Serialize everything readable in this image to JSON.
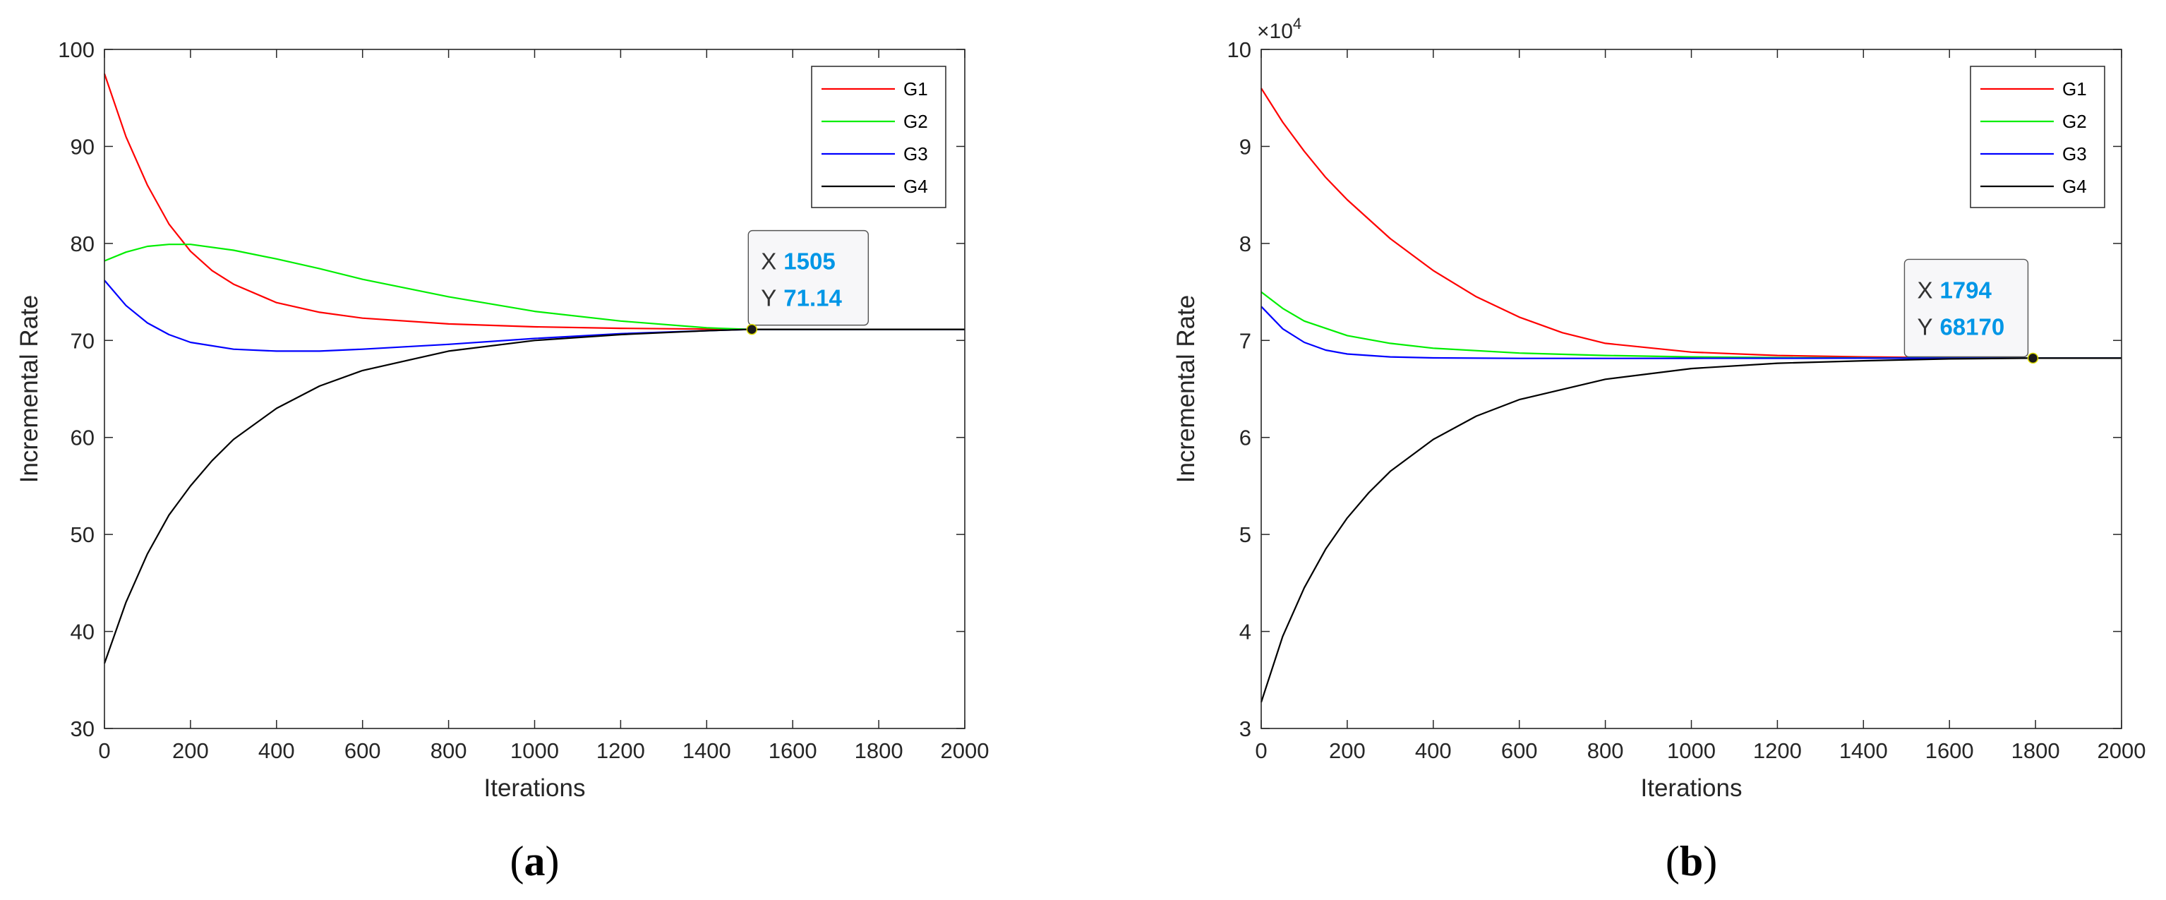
{
  "chart_data": [
    {
      "type": "line",
      "panel_label": "a",
      "xlabel": "Iterations",
      "ylabel": "Incremental Rate",
      "xlim": [
        0,
        2000
      ],
      "ylim": [
        30,
        100
      ],
      "xticks": [
        0,
        200,
        400,
        600,
        800,
        1000,
        1200,
        1400,
        1600,
        1800,
        2000
      ],
      "yticks": [
        30,
        40,
        50,
        60,
        70,
        80,
        90,
        100
      ],
      "exponent": "",
      "legend_position": "top-right",
      "series": [
        {
          "name": "G1",
          "color": "#ff0000",
          "x": [
            0,
            50,
            100,
            150,
            200,
            250,
            300,
            400,
            500,
            600,
            800,
            1000,
            1200,
            1400,
            1500,
            2000
          ],
          "values": [
            97.5,
            91.0,
            86.0,
            82.0,
            79.2,
            77.2,
            75.8,
            73.9,
            72.9,
            72.3,
            71.7,
            71.4,
            71.25,
            71.17,
            71.14,
            71.14
          ]
        },
        {
          "name": "G2",
          "color": "#00ee00",
          "x": [
            0,
            50,
            100,
            150,
            200,
            300,
            400,
            500,
            600,
            800,
            1000,
            1200,
            1400,
            1500,
            2000
          ],
          "values": [
            78.2,
            79.1,
            79.7,
            79.9,
            79.9,
            79.3,
            78.4,
            77.4,
            76.3,
            74.5,
            73.0,
            72.0,
            71.3,
            71.14,
            71.14
          ]
        },
        {
          "name": "G3",
          "color": "#0000ff",
          "x": [
            0,
            50,
            100,
            150,
            200,
            300,
            400,
            500,
            600,
            800,
            1000,
            1200,
            1400,
            1500,
            2000
          ],
          "values": [
            76.2,
            73.6,
            71.8,
            70.6,
            69.8,
            69.1,
            68.9,
            68.9,
            69.1,
            69.6,
            70.2,
            70.7,
            71.0,
            71.14,
            71.14
          ]
        },
        {
          "name": "G4",
          "color": "#000000",
          "x": [
            0,
            50,
            100,
            150,
            200,
            250,
            300,
            400,
            500,
            600,
            800,
            1000,
            1200,
            1400,
            1500,
            2000
          ],
          "values": [
            36.7,
            43.0,
            48.0,
            52.0,
            55.0,
            57.6,
            59.8,
            63.0,
            65.3,
            66.9,
            68.9,
            70.0,
            70.6,
            71.0,
            71.14,
            71.14
          ]
        }
      ],
      "datatip": {
        "x_label": "X",
        "x_value": "1505",
        "y_label": "Y",
        "y_value": "71.14",
        "point": [
          1505,
          71.14
        ],
        "value_color": "#0096e6"
      }
    },
    {
      "type": "line",
      "panel_label": "b",
      "xlabel": "Iterations",
      "ylabel": "Incremental Rate",
      "xlim": [
        0,
        2000
      ],
      "ylim": [
        3,
        10
      ],
      "xticks": [
        0,
        200,
        400,
        600,
        800,
        1000,
        1200,
        1400,
        1600,
        1800,
        2000
      ],
      "yticks": [
        3,
        4,
        5,
        6,
        7,
        8,
        9,
        10
      ],
      "exponent": "4",
      "legend_position": "top-right",
      "series": [
        {
          "name": "G1",
          "color": "#ff0000",
          "x": [
            0,
            50,
            100,
            150,
            200,
            300,
            400,
            500,
            600,
            700,
            800,
            1000,
            1200,
            1400,
            1600,
            1794,
            2000
          ],
          "values": [
            9.6,
            9.25,
            8.95,
            8.68,
            8.45,
            8.05,
            7.72,
            7.45,
            7.24,
            7.08,
            6.97,
            6.88,
            6.845,
            6.83,
            6.822,
            6.817,
            6.817
          ]
        },
        {
          "name": "G2",
          "color": "#00ee00",
          "x": [
            0,
            50,
            100,
            200,
            300,
            400,
            600,
            800,
            1000,
            1200,
            1400,
            1794,
            2000
          ],
          "values": [
            7.5,
            7.33,
            7.2,
            7.05,
            6.97,
            6.92,
            6.87,
            6.845,
            6.83,
            6.823,
            6.82,
            6.817,
            6.817
          ]
        },
        {
          "name": "G3",
          "color": "#0000ff",
          "x": [
            0,
            50,
            100,
            150,
            200,
            300,
            400,
            600,
            800,
            1000,
            1400,
            1794,
            2000
          ],
          "values": [
            7.35,
            7.12,
            6.98,
            6.9,
            6.86,
            6.83,
            6.82,
            6.815,
            6.815,
            6.816,
            6.817,
            6.817,
            6.817
          ]
        },
        {
          "name": "G4",
          "color": "#000000",
          "x": [
            0,
            50,
            100,
            150,
            200,
            250,
            300,
            400,
            500,
            600,
            800,
            1000,
            1200,
            1400,
            1600,
            1794,
            2000
          ],
          "values": [
            3.27,
            3.95,
            4.45,
            4.85,
            5.17,
            5.43,
            5.65,
            5.98,
            6.22,
            6.39,
            6.6,
            6.71,
            6.765,
            6.79,
            6.81,
            6.817,
            6.817
          ]
        }
      ],
      "datatip": {
        "x_label": "X",
        "x_value": "1794",
        "y_label": "Y",
        "y_value": "68170",
        "point": [
          1794,
          6.817
        ],
        "value_color": "#0096e6"
      }
    }
  ]
}
